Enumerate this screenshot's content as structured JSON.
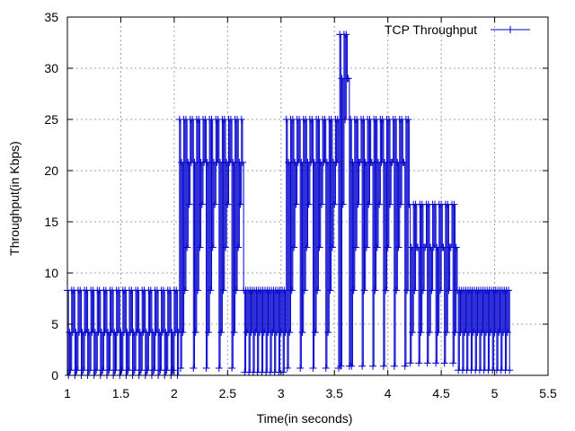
{
  "chart_data": {
    "type": "line",
    "title": "",
    "xlabel": "Time(in seconds)",
    "ylabel": "Throughput(in Kbps)",
    "xlim": [
      1,
      5.5
    ],
    "ylim": [
      0,
      35
    ],
    "x_ticks": [
      1,
      1.5,
      2,
      2.5,
      3,
      3.5,
      4,
      4.5,
      5,
      5.5
    ],
    "y_ticks": [
      0,
      5,
      10,
      15,
      20,
      25,
      30,
      35
    ],
    "grid": true,
    "legend_position": "top-right",
    "series_color": "#0000cc",
    "series": [
      {
        "name": "TCP Throughput",
        "segments": [
          {
            "x_start": 1.0,
            "x_end": 2.05,
            "levels": [
              0,
              0.5,
              4.2,
              8.3
            ]
          },
          {
            "x_start": 2.05,
            "x_end": 2.65,
            "levels": [
              0.7,
              4.2,
              8.3,
              12.5,
              16.7,
              20.8,
              25
            ]
          },
          {
            "x_start": 2.65,
            "x_end": 3.05,
            "levels": [
              0.3,
              4.2,
              8.3
            ]
          },
          {
            "x_start": 3.05,
            "x_end": 3.55,
            "levels": [
              0.7,
              4.2,
              8.3,
              12.5,
              16.7,
              20.8,
              25
            ]
          },
          {
            "x_start": 3.55,
            "x_end": 3.65,
            "levels": [
              0.9,
              16.7,
              25,
              29,
              33.3
            ]
          },
          {
            "x_start": 3.65,
            "x_end": 4.2,
            "levels": [
              0.9,
              8.3,
              12.5,
              16.7,
              20.8,
              25
            ]
          },
          {
            "x_start": 4.2,
            "x_end": 4.65,
            "levels": [
              1.2,
              4.2,
              8.3,
              12.5,
              16.7
            ]
          },
          {
            "x_start": 4.65,
            "x_end": 5.15,
            "levels": [
              0.5,
              4.2,
              8.3
            ]
          }
        ]
      }
    ]
  }
}
